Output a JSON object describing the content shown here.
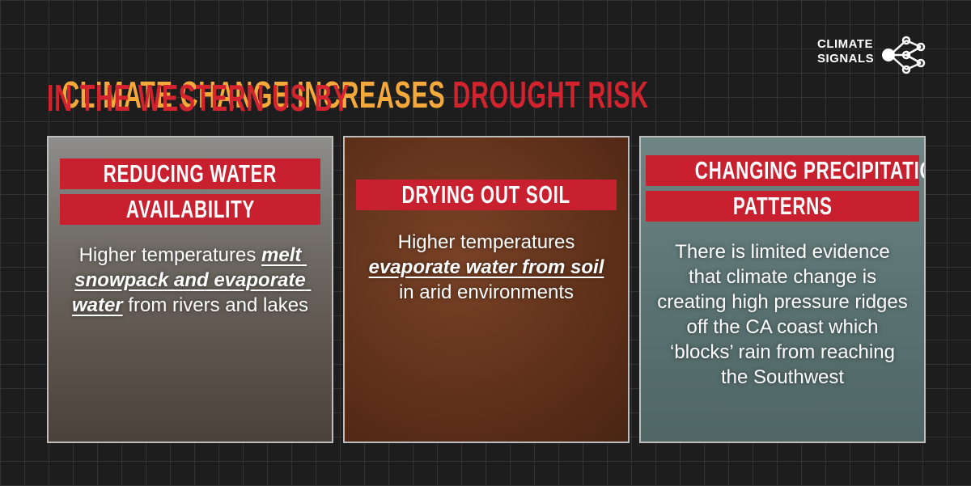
{
  "header": {
    "title_parts": [
      "CLIMATE CHANGE INCREASES ",
      "DROUGHT RISK"
    ],
    "title_line2": "IN THE WESTERN US BY"
  },
  "logo": {
    "lines": [
      "CLIMATE",
      "SIGNALS"
    ]
  },
  "panels": [
    {
      "heading": [
        "REDUCING WATER",
        "AVAILABILITY"
      ],
      "body": [
        {
          "text": "Higher temperatures "
        },
        {
          "text": "melt snowpack and evaporate water",
          "emphasis": true
        },
        {
          "text": " from rivers and lakes"
        }
      ]
    },
    {
      "heading": [
        "DRYING OUT SOIL"
      ],
      "body": [
        {
          "text": "Higher temperatures "
        },
        {
          "text": "evaporate water from soil",
          "emphasis": true
        },
        {
          "text": " in arid environments"
        }
      ]
    },
    {
      "heading": [
        "CHANGING PRECIPITATION",
        "PATTERNS"
      ],
      "body": [
        {
          "text": "There is limited evidence that climate change is creating high pressure ridges off the CA coast which ‘blocks’ rain from reaching the Southwest"
        }
      ]
    }
  ]
}
